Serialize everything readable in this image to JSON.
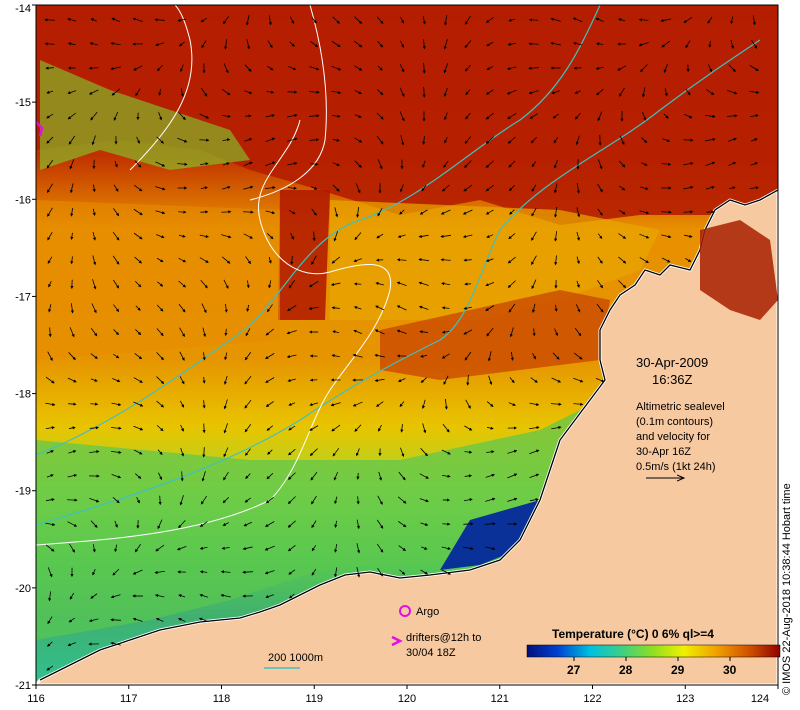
{
  "map": {
    "date": "30-Apr-2009",
    "time": "16:36Z",
    "altimetry_note": [
      "Altimetric sealevel",
      "(0.1m contours)",
      "and velocity for",
      "30-Apr 16Z",
      "0.5m/s (1kt 24h)"
    ],
    "argo_label": "Argo",
    "drifters_label": [
      "drifters@12h to",
      "30/04 18Z"
    ],
    "bathymetry_label": "200  1000m",
    "colorbar_title": "Temperature (°C) 0 6% ql>=4",
    "colorbar_ticks": [
      "27",
      "28",
      "29",
      "30"
    ],
    "credit": "© IMOS 22-Aug-2018 10:38:44 Hobart time",
    "x_ticks": [
      "116",
      "117",
      "118",
      "119",
      "120",
      "121",
      "122",
      "123",
      "124"
    ],
    "y_ticks": [
      "-14",
      "-15",
      "-16",
      "-17",
      "-18",
      "-19",
      "-20",
      "-21"
    ],
    "colors": {
      "land": "#f7c9a0",
      "sst_hot": "#b01c00",
      "sst_warm": "#e88a00",
      "sst_mid": "#e8c400",
      "sst_cool": "#58c850",
      "sst_cold": "#0020a0",
      "argo": "#e010e0",
      "bathy": "#40c0c0",
      "sealevel": "#ffffff"
    },
    "icons": [
      "argo-float-icon",
      "drifter-icon",
      "velocity-arrow-icon"
    ]
  }
}
